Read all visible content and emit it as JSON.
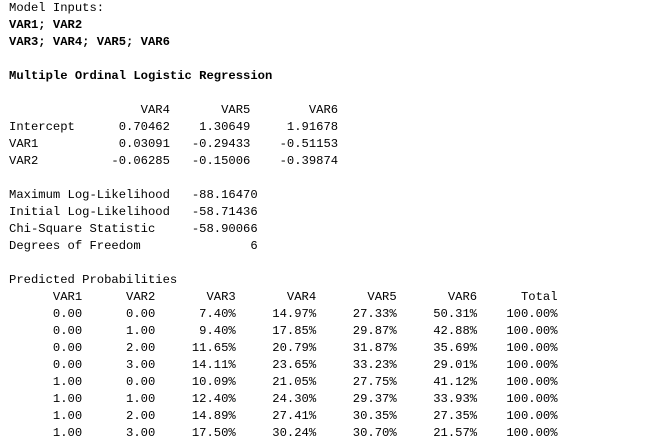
{
  "model_inputs": {
    "label": "Model Inputs:",
    "line1": "VAR1; VAR2",
    "line2": "VAR3; VAR4; VAR5; VAR6"
  },
  "method_title": "Multiple Ordinal Logistic Regression",
  "coefficients": {
    "columns": [
      "VAR4",
      "VAR5",
      "VAR6"
    ],
    "rows": [
      {
        "name": "Intercept",
        "values": [
          "0.70462",
          "1.30649",
          "1.91678"
        ]
      },
      {
        "name": "VAR1",
        "values": [
          "0.03091",
          "-0.29433",
          "-0.51153"
        ]
      },
      {
        "name": "VAR2",
        "values": [
          "-0.06285",
          "-0.15006",
          "-0.39874"
        ]
      }
    ]
  },
  "statistics": [
    {
      "label": "Maximum Log-Likelihood",
      "value": "-88.16470"
    },
    {
      "label": "Initial Log-Likelihood",
      "value": "-58.71436"
    },
    {
      "label": "Chi-Square Statistic",
      "value": "-58.90066"
    },
    {
      "label": "Degrees of Freedom",
      "value": "6"
    }
  ],
  "predicted": {
    "title": "Predicted Probabilities",
    "columns": [
      "VAR1",
      "VAR2",
      "VAR3",
      "VAR4",
      "VAR5",
      "VAR6",
      "Total"
    ],
    "rows": [
      [
        "0.00",
        "0.00",
        "7.40%",
        "14.97%",
        "27.33%",
        "50.31%",
        "100.00%"
      ],
      [
        "0.00",
        "1.00",
        "9.40%",
        "17.85%",
        "29.87%",
        "42.88%",
        "100.00%"
      ],
      [
        "0.00",
        "2.00",
        "11.65%",
        "20.79%",
        "31.87%",
        "35.69%",
        "100.00%"
      ],
      [
        "0.00",
        "3.00",
        "14.11%",
        "23.65%",
        "33.23%",
        "29.01%",
        "100.00%"
      ],
      [
        "1.00",
        "0.00",
        "10.09%",
        "21.05%",
        "27.75%",
        "41.12%",
        "100.00%"
      ],
      [
        "1.00",
        "1.00",
        "12.40%",
        "24.30%",
        "29.37%",
        "33.93%",
        "100.00%"
      ],
      [
        "1.00",
        "2.00",
        "14.89%",
        "27.41%",
        "30.35%",
        "27.35%",
        "100.00%"
      ],
      [
        "1.00",
        "3.00",
        "17.50%",
        "30.24%",
        "30.70%",
        "21.57%",
        "100.00%"
      ]
    ]
  }
}
